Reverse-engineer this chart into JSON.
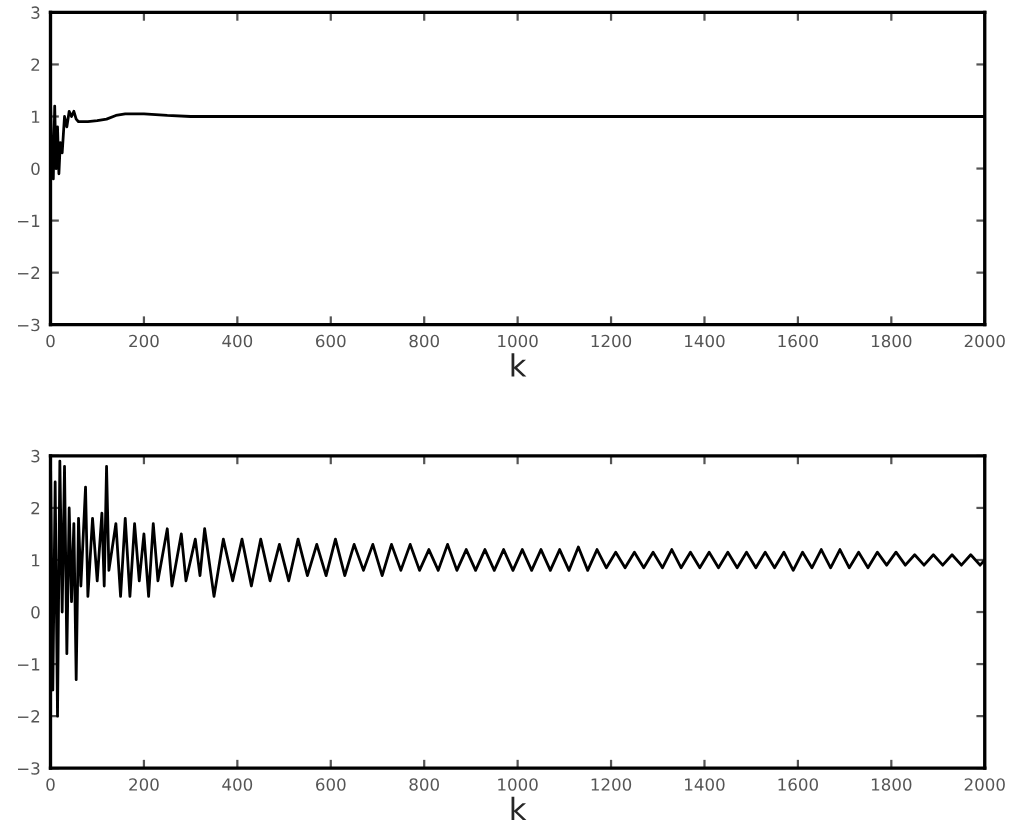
{
  "chart_data": [
    {
      "type": "line",
      "xlabel": "k",
      "xlim": [
        0,
        2000
      ],
      "ylim": [
        -3,
        3
      ],
      "xticks": [
        0,
        200,
        400,
        600,
        800,
        1000,
        1200,
        1400,
        1600,
        1800,
        2000
      ],
      "yticks": [
        -3,
        -2,
        -1,
        0,
        1,
        2,
        3
      ],
      "grid": false,
      "legend": false,
      "series": [
        {
          "color": "#000000",
          "x": [
            0,
            3,
            6,
            9,
            12,
            15,
            18,
            21,
            25,
            30,
            35,
            40,
            45,
            50,
            55,
            60,
            80,
            100,
            120,
            140,
            160,
            200,
            250,
            300,
            400,
            600,
            800,
            1000,
            1200,
            1400,
            1600,
            1800,
            2000
          ],
          "values": [
            1.3,
            0.2,
            -0.2,
            1.2,
            0.0,
            0.8,
            -0.1,
            0.5,
            0.3,
            1.0,
            0.8,
            1.1,
            1.0,
            1.1,
            0.95,
            0.9,
            0.9,
            0.92,
            0.95,
            1.02,
            1.05,
            1.05,
            1.02,
            1.0,
            1.0,
            1.0,
            1.0,
            1.0,
            1.0,
            1.0,
            1.0,
            1.0,
            1.0
          ]
        }
      ]
    },
    {
      "type": "line",
      "xlabel": "k",
      "xlim": [
        0,
        2000
      ],
      "ylim": [
        -3,
        3
      ],
      "xticks": [
        0,
        200,
        400,
        600,
        800,
        1000,
        1200,
        1400,
        1600,
        1800,
        2000
      ],
      "yticks": [
        -3,
        -2,
        -1,
        0,
        1,
        2,
        3
      ],
      "grid": false,
      "legend": false,
      "series": [
        {
          "color": "#000000",
          "x": [
            0,
            5,
            10,
            15,
            20,
            25,
            30,
            35,
            40,
            45,
            50,
            55,
            60,
            65,
            75,
            80,
            90,
            100,
            110,
            115,
            120,
            125,
            140,
            150,
            160,
            170,
            180,
            190,
            200,
            210,
            220,
            230,
            250,
            260,
            280,
            290,
            310,
            320,
            330,
            350,
            370,
            390,
            410,
            430,
            450,
            470,
            490,
            510,
            530,
            550,
            570,
            590,
            610,
            630,
            650,
            670,
            690,
            710,
            730,
            750,
            770,
            790,
            810,
            830,
            850,
            870,
            890,
            910,
            930,
            950,
            970,
            990,
            1010,
            1030,
            1050,
            1070,
            1090,
            1110,
            1130,
            1150,
            1170,
            1190,
            1210,
            1230,
            1250,
            1270,
            1290,
            1310,
            1330,
            1350,
            1370,
            1390,
            1410,
            1430,
            1450,
            1470,
            1490,
            1510,
            1530,
            1550,
            1570,
            1590,
            1610,
            1630,
            1650,
            1670,
            1690,
            1710,
            1730,
            1750,
            1770,
            1790,
            1810,
            1830,
            1850,
            1870,
            1890,
            1910,
            1930,
            1950,
            1970,
            1990,
            2000
          ],
          "values": [
            3.0,
            -1.5,
            2.5,
            -2.0,
            2.9,
            0.0,
            2.8,
            -0.8,
            2.0,
            0.2,
            1.7,
            -1.3,
            1.8,
            0.5,
            2.4,
            0.3,
            1.8,
            0.6,
            1.9,
            0.5,
            2.8,
            0.8,
            1.7,
            0.3,
            1.8,
            0.3,
            1.7,
            0.6,
            1.5,
            0.3,
            1.7,
            0.6,
            1.6,
            0.5,
            1.5,
            0.6,
            1.4,
            0.7,
            1.6,
            0.3,
            1.4,
            0.6,
            1.4,
            0.5,
            1.4,
            0.6,
            1.3,
            0.6,
            1.4,
            0.7,
            1.3,
            0.7,
            1.4,
            0.7,
            1.3,
            0.8,
            1.3,
            0.7,
            1.3,
            0.8,
            1.3,
            0.8,
            1.2,
            0.8,
            1.3,
            0.8,
            1.2,
            0.8,
            1.2,
            0.8,
            1.2,
            0.8,
            1.2,
            0.8,
            1.2,
            0.8,
            1.2,
            0.8,
            1.25,
            0.8,
            1.2,
            0.85,
            1.15,
            0.85,
            1.15,
            0.85,
            1.15,
            0.85,
            1.2,
            0.85,
            1.15,
            0.85,
            1.15,
            0.85,
            1.15,
            0.85,
            1.15,
            0.85,
            1.15,
            0.85,
            1.15,
            0.8,
            1.15,
            0.85,
            1.2,
            0.85,
            1.2,
            0.85,
            1.15,
            0.85,
            1.15,
            0.9,
            1.15,
            0.9,
            1.1,
            0.9,
            1.1,
            0.9,
            1.1,
            0.9,
            1.1,
            0.9,
            1.0
          ]
        }
      ]
    }
  ]
}
